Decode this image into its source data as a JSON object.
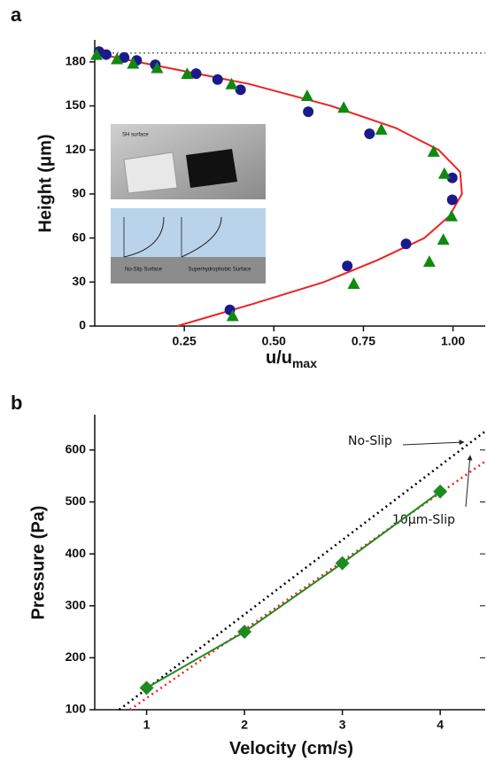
{
  "chart_data": [
    {
      "type": "scatter",
      "label": "a",
      "xlabel": {
        "main": "u/u",
        "sub": "max"
      },
      "ylabel": "Height (μm)",
      "xlim": [
        0,
        1.09
      ],
      "ylim": [
        0,
        195
      ],
      "xticks": [
        {
          "value": 0.25,
          "label": "0.25"
        },
        {
          "value": 0.5,
          "label": "0.50"
        },
        {
          "value": 0.75,
          "label": "0.75"
        },
        {
          "value": 1,
          "label": "1.00"
        }
      ],
      "yticks": [
        0,
        30,
        60,
        90,
        120,
        150,
        180
      ],
      "hlines": [
        186
      ],
      "annotations": [
        "SH surface",
        "No-Slip Surface",
        "Superhydrophobic Surface"
      ],
      "series": [
        {
          "marker": "line",
          "color": "#ee2222",
          "dash": false,
          "x": [
            0.23,
            0.44,
            0.64,
            0.79,
            0.92,
            0.99,
            1.025,
            1.02,
            0.96,
            0.84,
            0.66,
            0.43,
            0.12,
            0.0
          ],
          "values": [
            0,
            15,
            30,
            45,
            60,
            75,
            90,
            105,
            120,
            135,
            150,
            165,
            180,
            186
          ]
        },
        {
          "marker": "circle",
          "color": "#1a1a8c",
          "x": [
            0.012,
            0.032,
            0.082,
            0.117,
            0.169,
            0.283,
            0.343,
            0.407,
            0.596,
            0.767,
            0.998,
            0.998,
            0.869,
            0.705,
            0.377
          ],
          "values": [
            187,
            185,
            183,
            181,
            178,
            172,
            168,
            161,
            146,
            131,
            101,
            86,
            56,
            41,
            11
          ]
        },
        {
          "marker": "triangle",
          "color": "#0f8a0f",
          "x": [
            0.005,
            0.062,
            0.107,
            0.174,
            0.258,
            0.382,
            0.593,
            0.695,
            0.8,
            0.946,
            0.976,
            0.996,
            0.973,
            0.934,
            0.723,
            0.385
          ],
          "values": [
            185,
            182,
            179,
            176,
            172,
            165,
            157,
            149,
            134,
            119,
            104,
            75,
            59,
            44,
            29,
            7
          ]
        }
      ]
    },
    {
      "type": "scatter",
      "label": "b",
      "xlabel": {
        "main": "Velocity (cm/s)"
      },
      "ylabel": "Pressure (Pa)",
      "xlim": [
        0.47,
        4.46
      ],
      "ylim": [
        100,
        668
      ],
      "xticks": [
        1,
        2,
        3,
        4
      ],
      "yticks": [
        100,
        200,
        300,
        400,
        500,
        600
      ],
      "annotations": [
        "No-Slip",
        "10μm-Slip"
      ],
      "series": [
        {
          "marker": "line",
          "color": "#000000",
          "dash": true,
          "x": [
            0.72,
            4.46
          ],
          "values": [
            100,
            636
          ]
        },
        {
          "marker": "line",
          "color": "#ee2222",
          "dash": true,
          "x": [
            0.83,
            4.46
          ],
          "values": [
            100,
            578
          ]
        },
        {
          "marker": "diamond",
          "line": true,
          "color": "#1f8a1f",
          "x": [
            1,
            2,
            3,
            4
          ],
          "values": [
            142,
            250,
            382,
            520
          ]
        }
      ]
    }
  ]
}
